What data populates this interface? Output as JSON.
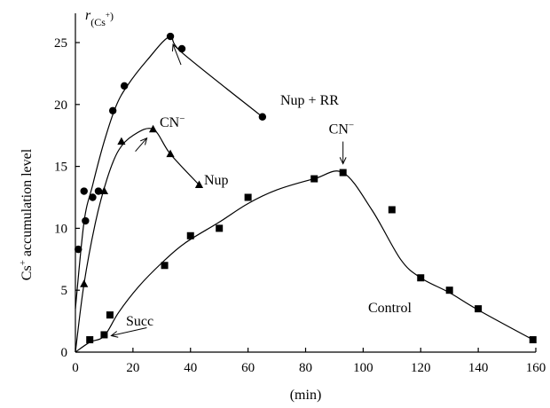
{
  "chart_data": {
    "type": "scatter",
    "xlabel": "(min)",
    "ylabel": "Cs+ accumulation level",
    "ylabel_parts": {
      "base": "Cs",
      "sup": "+",
      "rest": " accumulation level"
    },
    "corner_label_parts": {
      "r": "r",
      "sub": "(Cs",
      "sup": "+",
      "close": ")"
    },
    "xlim": [
      0,
      160
    ],
    "ylim": [
      0,
      27
    ],
    "x_ticks": [
      0,
      20,
      40,
      60,
      80,
      100,
      120,
      140,
      160
    ],
    "y_ticks": [
      0,
      5,
      10,
      15,
      20,
      25
    ],
    "grid": false,
    "series": [
      {
        "name": "Nup + RR",
        "marker": "circle",
        "points": [
          [
            1,
            8.3
          ],
          [
            3,
            13
          ],
          [
            3.5,
            10.6
          ],
          [
            6,
            12.5
          ],
          [
            8,
            13
          ],
          [
            13,
            19.5
          ],
          [
            17,
            21.5
          ],
          [
            33,
            25.5
          ],
          [
            37,
            24.5
          ],
          [
            65,
            19
          ]
        ],
        "curve": [
          [
            0,
            3.5
          ],
          [
            3,
            10.5
          ],
          [
            6,
            13.5
          ],
          [
            10,
            17
          ],
          [
            14,
            19.8
          ],
          [
            18,
            21.5
          ],
          [
            25,
            23.6
          ],
          [
            33,
            25.5
          ],
          [
            37,
            24.2
          ],
          [
            65,
            19
          ]
        ]
      },
      {
        "name": "Nup",
        "marker": "triangle",
        "points": [
          [
            3,
            5.5
          ],
          [
            10,
            13
          ],
          [
            16,
            17
          ],
          [
            27,
            18
          ],
          [
            33,
            16
          ],
          [
            43,
            13.5
          ]
        ],
        "curve": [
          [
            0,
            0
          ],
          [
            3,
            5.5
          ],
          [
            7,
            10.5
          ],
          [
            11,
            14
          ],
          [
            15,
            16.3
          ],
          [
            20,
            17.5
          ],
          [
            27,
            18
          ],
          [
            33,
            16
          ],
          [
            43,
            13.5
          ]
        ]
      },
      {
        "name": "Control",
        "marker": "square",
        "points": [
          [
            5,
            1
          ],
          [
            10,
            1.4
          ],
          [
            12,
            3
          ],
          [
            31,
            7
          ],
          [
            40,
            9.4
          ],
          [
            50,
            10
          ],
          [
            60,
            12.5
          ],
          [
            83,
            14
          ],
          [
            93,
            14.5
          ],
          [
            110,
            11.5
          ],
          [
            120,
            6
          ],
          [
            130,
            5
          ],
          [
            140,
            3.5
          ],
          [
            159,
            1
          ]
        ],
        "curve": [
          [
            0,
            0
          ],
          [
            5,
            0.8
          ],
          [
            10,
            1.3
          ],
          [
            15,
            3.2
          ],
          [
            22,
            5.3
          ],
          [
            30,
            7.2
          ],
          [
            38,
            8.8
          ],
          [
            50,
            10.5
          ],
          [
            60,
            12
          ],
          [
            70,
            13.1
          ],
          [
            83,
            14
          ],
          [
            93,
            14.5
          ],
          [
            103,
            11.5
          ],
          [
            113,
            7.5
          ],
          [
            120,
            6
          ],
          [
            130,
            4.8
          ],
          [
            140,
            3.4
          ],
          [
            159,
            1
          ]
        ]
      }
    ],
    "annotations": [
      {
        "id": "cn1",
        "parts": {
          "base": "CN",
          "sup": "−"
        },
        "point": [
          33,
          25.5
        ]
      },
      {
        "id": "cn2",
        "parts": {
          "base": "CN",
          "sup": "−"
        },
        "point": [
          27,
          18
        ]
      },
      {
        "id": "cn3",
        "parts": {
          "base": "CN",
          "sup": "−"
        },
        "point": [
          93,
          14.5
        ]
      },
      {
        "id": "succ",
        "text": "Succ",
        "point": [
          10,
          1.4
        ]
      },
      {
        "id": "nuprr",
        "text": "Nup + RR"
      },
      {
        "id": "nup",
        "text": "Nup"
      },
      {
        "id": "control",
        "text": "Control"
      }
    ]
  }
}
